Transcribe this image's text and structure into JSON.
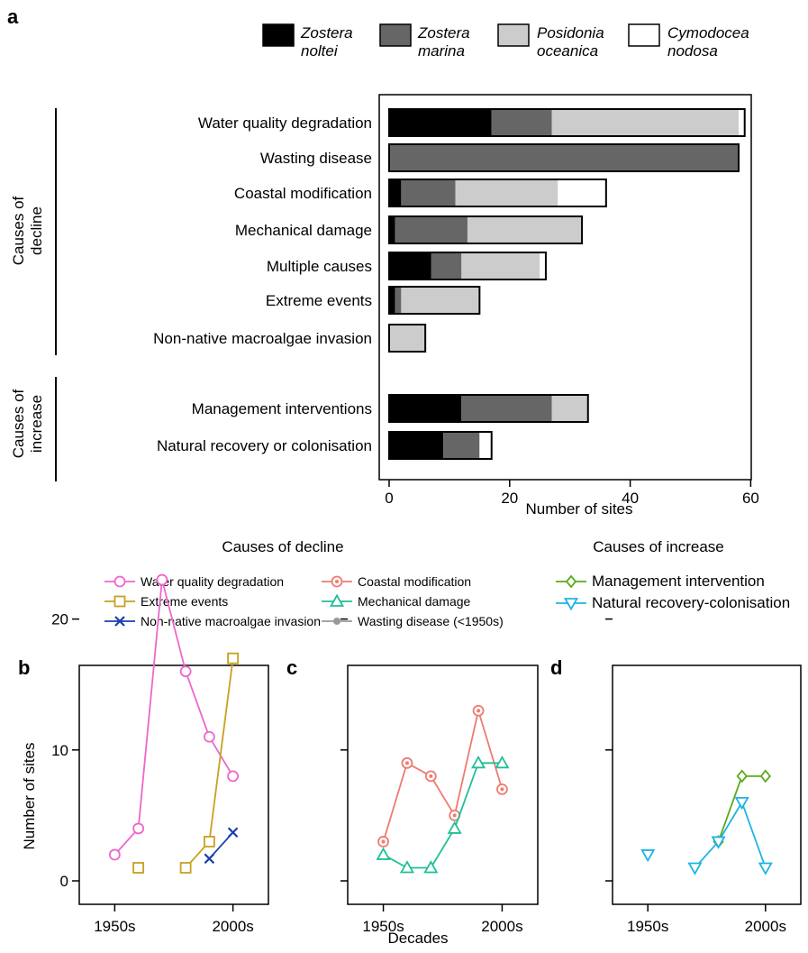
{
  "panel_labels": {
    "a": "a",
    "b": "b",
    "c": "c",
    "d": "d"
  },
  "species_legend": [
    {
      "line1": "Zostera",
      "line2": "noltei",
      "color": "#000000"
    },
    {
      "line1": "Zostera",
      "line2": "marina",
      "color": "#666666"
    },
    {
      "line1": "Posidonia",
      "line2": "oceanica",
      "color": "#cccccc"
    },
    {
      "line1": "Cymodocea",
      "line2": "nodosa",
      "color": "#ffffff"
    }
  ],
  "group_labels": {
    "decline_line1": "Causes of",
    "decline_line2": "decline",
    "increase_line1": "Causes of",
    "increase_line2": "increase"
  },
  "line_legend": {
    "decline_title": "Causes of decline",
    "increase_title": "Causes of increase",
    "items": [
      {
        "label": "Water quality degradation",
        "color": "#ee66cc",
        "marker": "circle-open"
      },
      {
        "label": "Extreme events",
        "color": "#c9a021",
        "marker": "square-open"
      },
      {
        "label": "Non-native macroalgae invasion",
        "color": "#1a3fb0",
        "marker": "x"
      },
      {
        "label": "Coastal modification",
        "color": "#ef7b70",
        "marker": "circle-dot"
      },
      {
        "label": "Mechanical damage",
        "color": "#20bf98",
        "marker": "triangle-up"
      },
      {
        "label": "Wasting disease (<1950s)",
        "color": "#999999",
        "marker": "circle-filled"
      },
      {
        "label": "Management intervention",
        "color": "#5aaa1e",
        "marker": "diamond-open"
      },
      {
        "label": "Natural recovery-colonisation",
        "color": "#1cb4e6",
        "marker": "triangle-down"
      }
    ]
  },
  "chart_data": [
    {
      "type": "bar",
      "orientation": "horizontal",
      "stacked": true,
      "categories": [
        "Water quality degradation",
        "Wasting disease",
        "Coastal modification",
        "Mechanical damage",
        "Multiple causes",
        "Extreme events",
        "Non-native macroalgae invasion",
        "Management interventions",
        "Natural recovery or colonisation"
      ],
      "series": [
        {
          "name": "Zostera noltei",
          "color": "#000000",
          "values": [
            17,
            0,
            2,
            1,
            7,
            1,
            0,
            12,
            9
          ]
        },
        {
          "name": "Zostera marina",
          "color": "#666666",
          "values": [
            10,
            58,
            9,
            12,
            5,
            1,
            0,
            15,
            6
          ]
        },
        {
          "name": "Posidonia oceanica",
          "color": "#cccccc",
          "values": [
            31,
            0,
            17,
            19,
            13,
            13,
            6,
            6,
            0
          ]
        },
        {
          "name": "Cymodocea nodosa",
          "color": "#ffffff",
          "values": [
            1,
            0,
            8,
            0,
            1,
            0,
            0,
            0,
            2
          ]
        }
      ],
      "xlabel": "Number of sites",
      "xlim": [
        0,
        62
      ],
      "xticks": [
        "0",
        "20",
        "40",
        "60"
      ],
      "xtick_values": [
        0,
        20,
        40,
        60
      ]
    },
    {
      "type": "line",
      "panel": "b",
      "ylabel": "Number of sites",
      "xticks": [
        "1950s",
        "2000s"
      ],
      "xtick_values": [
        1950,
        2000
      ],
      "xlim": [
        1935,
        2015
      ],
      "yticks": [
        "0",
        "10",
        "20"
      ],
      "ytick_values": [
        0,
        10,
        20
      ],
      "ylim": [
        -1,
        26
      ],
      "series": [
        {
          "name": "Water quality degradation",
          "color": "#ee66cc",
          "marker": "circle-open",
          "x": [
            1950,
            1960,
            1970,
            1980,
            1990,
            2000
          ],
          "y": [
            2,
            4,
            23,
            16,
            11,
            8
          ]
        },
        {
          "name": "Extreme events",
          "color": "#c9a021",
          "marker": "square-open",
          "x": [
            1960,
            1980,
            1990,
            2000
          ],
          "y": [
            1,
            1,
            3,
            17
          ],
          "segments": [
            [
              1980,
              1990
            ],
            [
              1990,
              2000
            ]
          ]
        },
        {
          "name": "Non-native macroalgae invasion",
          "color": "#1a3fb0",
          "marker": "x",
          "x": [
            1990,
            2000
          ],
          "y": [
            1.7,
            3.7
          ]
        }
      ]
    },
    {
      "type": "line",
      "panel": "c",
      "xlabel": "Decades",
      "xticks": [
        "1950s",
        "2000s"
      ],
      "xtick_values": [
        1950,
        2000
      ],
      "xlim": [
        1935,
        2015
      ],
      "ylim": [
        -1,
        26
      ],
      "series": [
        {
          "name": "Coastal modification",
          "color": "#ef7b70",
          "marker": "circle-dot",
          "x": [
            1950,
            1960,
            1970,
            1980,
            1990,
            2000
          ],
          "y": [
            3,
            9,
            8,
            5,
            13,
            7
          ]
        },
        {
          "name": "Mechanical damage",
          "color": "#20bf98",
          "marker": "triangle-up",
          "x": [
            1950,
            1960,
            1970,
            1980,
            1990,
            2000
          ],
          "y": [
            2,
            1,
            1,
            4,
            9,
            9
          ]
        }
      ]
    },
    {
      "type": "line",
      "panel": "d",
      "xticks": [
        "1950s",
        "2000s"
      ],
      "xtick_values": [
        1950,
        2000
      ],
      "xlim": [
        1935,
        2015
      ],
      "ylim": [
        -1,
        26
      ],
      "series": [
        {
          "name": "Management intervention",
          "color": "#5aaa1e",
          "marker": "diamond-open",
          "x": [
            1980,
            1990,
            2000
          ],
          "y": [
            3,
            8,
            8
          ]
        },
        {
          "name": "Natural recovery-colonisation",
          "color": "#1cb4e6",
          "marker": "triangle-down",
          "x": [
            1950,
            1970,
            1980,
            1990,
            2000
          ],
          "y": [
            2,
            1,
            3,
            6,
            1
          ],
          "segments": [
            [
              1970,
              1980
            ],
            [
              1980,
              1990
            ],
            [
              1990,
              2000
            ]
          ]
        }
      ]
    }
  ]
}
